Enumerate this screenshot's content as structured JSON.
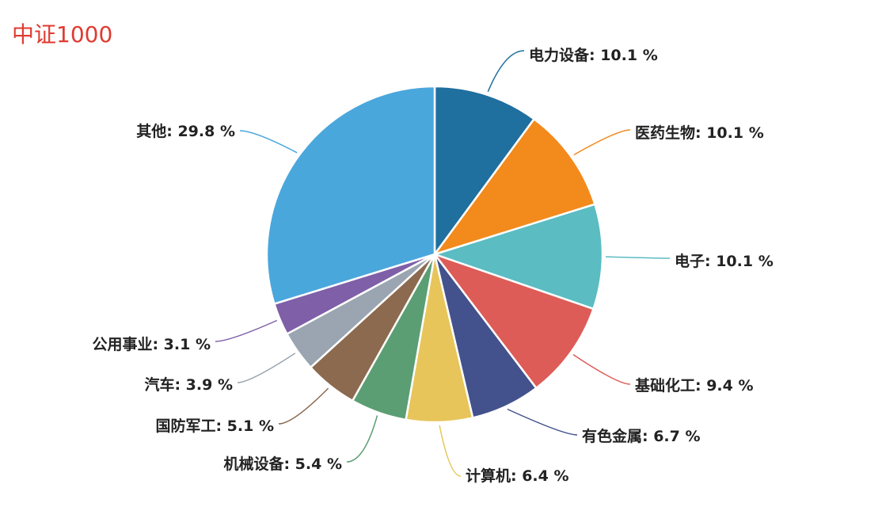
{
  "title": "中证1000",
  "colors": {
    "title": "#e03b31",
    "label": "#222222"
  },
  "chart_data": {
    "type": "pie",
    "title": "中证1000",
    "slices": [
      {
        "label": "电力设备",
        "value": 10.1,
        "text": "电力设备: 10.1 %",
        "color": "#1f6f9f",
        "label_side": "right"
      },
      {
        "label": "医药生物",
        "value": 10.1,
        "text": "医药生物: 10.1 %",
        "color": "#f38a1c",
        "label_side": "right"
      },
      {
        "label": "电子",
        "value": 10.1,
        "text": "电子: 10.1 %",
        "color": "#5bbcc2",
        "label_side": "right"
      },
      {
        "label": "基础化工",
        "value": 9.4,
        "text": "基础化工: 9.4 %",
        "color": "#dd5c57",
        "label_side": "right"
      },
      {
        "label": "有色金属",
        "value": 6.7,
        "text": "有色金属: 6.7 %",
        "color": "#43528c",
        "label_side": "right"
      },
      {
        "label": "计算机",
        "value": 6.4,
        "text": "计算机: 6.4 %",
        "color": "#e7c55a",
        "label_side": "right"
      },
      {
        "label": "机械设备",
        "value": 5.4,
        "text": "机械设备: 5.4 %",
        "color": "#5b9e73",
        "label_side": "left"
      },
      {
        "label": "国防军工",
        "value": 5.1,
        "text": "国防军工: 5.1 %",
        "color": "#8c6a4f",
        "label_side": "left"
      },
      {
        "label": "汽车",
        "value": 3.9,
        "text": "汽车: 3.9 %",
        "color": "#9aa5b1",
        "label_side": "left"
      },
      {
        "label": "公用事业",
        "value": 3.1,
        "text": "公用事业: 3.1 %",
        "color": "#7e5fa8",
        "label_side": "left"
      },
      {
        "label": "其他",
        "value": 29.8,
        "text": "其他: 29.8 %",
        "color": "#4aa7dc",
        "label_side": "left"
      }
    ]
  }
}
